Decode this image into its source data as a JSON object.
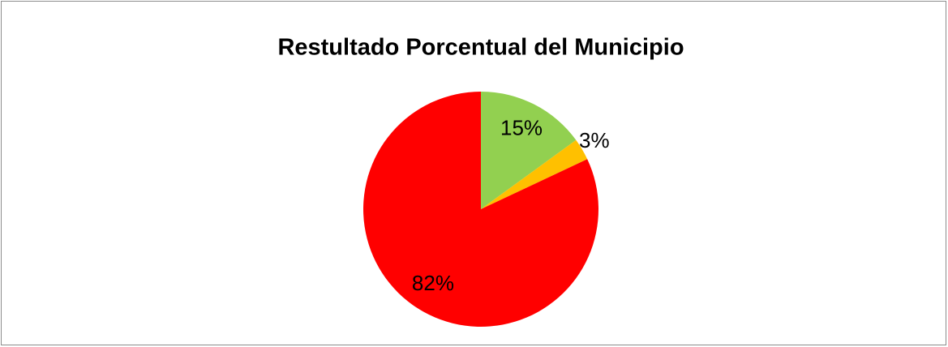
{
  "chart_data": {
    "type": "pie",
    "title": "Restultado Porcentual del Municipio",
    "values": [
      15,
      3,
      82
    ],
    "value_labels": [
      "15%",
      "3%",
      "82%"
    ],
    "colors": [
      "#92d050",
      "#ffc000",
      "#ff0000"
    ]
  }
}
